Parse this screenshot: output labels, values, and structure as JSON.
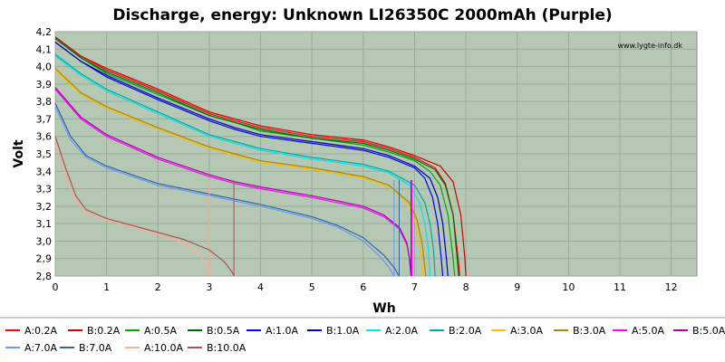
{
  "chart_data": {
    "type": "line",
    "title": "Discharge, energy: Unknown LI26350C 2000mAh (Purple)",
    "xlabel": "Wh",
    "ylabel": "Volt",
    "watermark": "www.lygte-info.dk",
    "xlim": [
      0,
      12.5
    ],
    "ylim": [
      2.8,
      4.2
    ],
    "x_ticks": [
      "0",
      "1",
      "2",
      "3",
      "4",
      "5",
      "6",
      "7",
      "8",
      "9",
      "10",
      "11",
      "12"
    ],
    "y_ticks": [
      "2,8",
      "2,9",
      "3,0",
      "3,1",
      "3,2",
      "3,3",
      "3,4",
      "3,5",
      "3,6",
      "3,7",
      "3,8",
      "3,9",
      "4,0",
      "4,1",
      "4,2"
    ],
    "grid": true,
    "legend_position": "bottom",
    "series": [
      {
        "name": "A:0.2A",
        "color": "#ff0000",
        "points": [
          [
            0,
            4.17
          ],
          [
            0.5,
            4.06
          ],
          [
            1,
            3.98
          ],
          [
            2,
            3.86
          ],
          [
            3,
            3.73
          ],
          [
            3.5,
            3.69
          ],
          [
            4,
            3.65
          ],
          [
            5,
            3.6
          ],
          [
            6,
            3.57
          ],
          [
            6.5,
            3.53
          ],
          [
            7,
            3.48
          ],
          [
            7.4,
            3.42
          ],
          [
            7.6,
            3.33
          ],
          [
            7.75,
            3.15
          ],
          [
            7.85,
            2.9
          ],
          [
            7.88,
            2.8
          ]
        ]
      },
      {
        "name": "B:0.2A",
        "color": "#cc0000",
        "points": [
          [
            0,
            4.17
          ],
          [
            0.5,
            4.06
          ],
          [
            1,
            3.99
          ],
          [
            2,
            3.87
          ],
          [
            3,
            3.74
          ],
          [
            3.5,
            3.7
          ],
          [
            4,
            3.66
          ],
          [
            5,
            3.61
          ],
          [
            6,
            3.58
          ],
          [
            6.5,
            3.54
          ],
          [
            7,
            3.49
          ],
          [
            7.5,
            3.43
          ],
          [
            7.75,
            3.34
          ],
          [
            7.9,
            3.15
          ],
          [
            7.98,
            2.9
          ],
          [
            8,
            2.8
          ]
        ]
      },
      {
        "name": "A:0.5A",
        "color": "#00aa00",
        "points": [
          [
            0,
            4.16
          ],
          [
            0.5,
            4.05
          ],
          [
            1,
            3.96
          ],
          [
            2,
            3.84
          ],
          [
            3,
            3.72
          ],
          [
            3.5,
            3.68
          ],
          [
            4,
            3.63
          ],
          [
            5,
            3.59
          ],
          [
            6,
            3.55
          ],
          [
            6.5,
            3.51
          ],
          [
            7,
            3.46
          ],
          [
            7.3,
            3.4
          ],
          [
            7.5,
            3.32
          ],
          [
            7.65,
            3.15
          ],
          [
            7.75,
            2.9
          ],
          [
            7.78,
            2.8
          ]
        ]
      },
      {
        "name": "B:0.5A",
        "color": "#006600",
        "points": [
          [
            0,
            4.16
          ],
          [
            0.5,
            4.05
          ],
          [
            1,
            3.97
          ],
          [
            2,
            3.85
          ],
          [
            3,
            3.72
          ],
          [
            3.5,
            3.68
          ],
          [
            4,
            3.64
          ],
          [
            5,
            3.59
          ],
          [
            6,
            3.56
          ],
          [
            6.5,
            3.52
          ],
          [
            7,
            3.47
          ],
          [
            7.4,
            3.41
          ],
          [
            7.6,
            3.32
          ],
          [
            7.75,
            3.15
          ],
          [
            7.83,
            2.9
          ],
          [
            7.86,
            2.8
          ]
        ]
      },
      {
        "name": "A:1.0A",
        "color": "#0000ff",
        "points": [
          [
            0,
            4.14
          ],
          [
            0.5,
            4.03
          ],
          [
            1,
            3.94
          ],
          [
            2,
            3.81
          ],
          [
            3,
            3.69
          ],
          [
            3.5,
            3.64
          ],
          [
            4,
            3.6
          ],
          [
            5,
            3.56
          ],
          [
            6,
            3.52
          ],
          [
            6.5,
            3.48
          ],
          [
            7,
            3.42
          ],
          [
            7.2,
            3.36
          ],
          [
            7.35,
            3.25
          ],
          [
            7.45,
            3.1
          ],
          [
            7.52,
            2.9
          ],
          [
            7.55,
            2.8
          ]
        ]
      },
      {
        "name": "B:1.0A",
        "color": "#0000aa",
        "points": [
          [
            0,
            4.14
          ],
          [
            0.5,
            4.03
          ],
          [
            1,
            3.95
          ],
          [
            2,
            3.82
          ],
          [
            3,
            3.7
          ],
          [
            3.5,
            3.65
          ],
          [
            4,
            3.61
          ],
          [
            5,
            3.57
          ],
          [
            6,
            3.53
          ],
          [
            6.5,
            3.49
          ],
          [
            7,
            3.43
          ],
          [
            7.3,
            3.36
          ],
          [
            7.45,
            3.25
          ],
          [
            7.55,
            3.1
          ],
          [
            7.62,
            2.9
          ],
          [
            7.65,
            2.8
          ]
        ]
      },
      {
        "name": "A:2.0A",
        "color": "#00e5e5",
        "points": [
          [
            0,
            4.06
          ],
          [
            0.5,
            3.95
          ],
          [
            1,
            3.86
          ],
          [
            2,
            3.73
          ],
          [
            3,
            3.6
          ],
          [
            3.5,
            3.56
          ],
          [
            4,
            3.52
          ],
          [
            5,
            3.47
          ],
          [
            6,
            3.43
          ],
          [
            6.5,
            3.39
          ],
          [
            6.9,
            3.32
          ],
          [
            7.1,
            3.22
          ],
          [
            7.2,
            3.1
          ],
          [
            7.27,
            2.95
          ],
          [
            7.3,
            2.8
          ]
        ]
      },
      {
        "name": "B:2.0A",
        "color": "#00aaaa",
        "points": [
          [
            0,
            4.07
          ],
          [
            0.5,
            3.96
          ],
          [
            1,
            3.87
          ],
          [
            2,
            3.74
          ],
          [
            3,
            3.61
          ],
          [
            3.5,
            3.57
          ],
          [
            4,
            3.53
          ],
          [
            5,
            3.48
          ],
          [
            6,
            3.44
          ],
          [
            6.5,
            3.4
          ],
          [
            7,
            3.32
          ],
          [
            7.2,
            3.22
          ],
          [
            7.3,
            3.1
          ],
          [
            7.37,
            2.95
          ],
          [
            7.4,
            2.8
          ]
        ]
      },
      {
        "name": "A:3.0A",
        "color": "#ffbb00",
        "points": [
          [
            0,
            3.98
          ],
          [
            0.5,
            3.84
          ],
          [
            1,
            3.76
          ],
          [
            2,
            3.64
          ],
          [
            3,
            3.53
          ],
          [
            3.5,
            3.49
          ],
          [
            4,
            3.45
          ],
          [
            5,
            3.41
          ],
          [
            6,
            3.36
          ],
          [
            6.5,
            3.31
          ],
          [
            6.85,
            3.22
          ],
          [
            7,
            3.12
          ],
          [
            7.1,
            2.98
          ],
          [
            7.15,
            2.85
          ],
          [
            7.17,
            2.8
          ]
        ]
      },
      {
        "name": "B:3.0A",
        "color": "#aa8800",
        "points": [
          [
            0,
            3.99
          ],
          [
            0.5,
            3.85
          ],
          [
            1,
            3.77
          ],
          [
            2,
            3.65
          ],
          [
            3,
            3.54
          ],
          [
            3.5,
            3.5
          ],
          [
            4,
            3.46
          ],
          [
            5,
            3.42
          ],
          [
            6,
            3.37
          ],
          [
            6.5,
            3.32
          ],
          [
            6.9,
            3.22
          ],
          [
            7.05,
            3.12
          ],
          [
            7.15,
            2.98
          ],
          [
            7.2,
            2.85
          ],
          [
            7.22,
            2.8
          ]
        ]
      },
      {
        "name": "A:5.0A",
        "color": "#ff00ff",
        "points": [
          [
            0,
            3.87
          ],
          [
            0.5,
            3.7
          ],
          [
            1,
            3.6
          ],
          [
            2,
            3.47
          ],
          [
            3,
            3.37
          ],
          [
            3.5,
            3.33
          ],
          [
            4,
            3.3
          ],
          [
            5,
            3.25
          ],
          [
            6,
            3.19
          ],
          [
            6.4,
            3.14
          ],
          [
            6.7,
            3.07
          ],
          [
            6.85,
            2.98
          ],
          [
            6.92,
            2.88
          ],
          [
            6.95,
            2.8
          ]
        ]
      },
      {
        "name": "B:5.0A",
        "color": "#aa00aa",
        "points": [
          [
            0,
            3.88
          ],
          [
            0.5,
            3.71
          ],
          [
            1,
            3.61
          ],
          [
            2,
            3.48
          ],
          [
            3,
            3.38
          ],
          [
            3.5,
            3.34
          ],
          [
            4,
            3.31
          ],
          [
            5,
            3.26
          ],
          [
            6,
            3.2
          ],
          [
            6.4,
            3.15
          ],
          [
            6.7,
            3.08
          ],
          [
            6.85,
            2.99
          ],
          [
            6.9,
            2.9
          ],
          [
            6.93,
            2.8
          ]
        ]
      },
      {
        "name": "A:7.0A",
        "color": "#6699ff",
        "points": [
          [
            0,
            3.77
          ],
          [
            0.3,
            3.58
          ],
          [
            0.6,
            3.48
          ],
          [
            1,
            3.42
          ],
          [
            2,
            3.32
          ],
          [
            3,
            3.26
          ],
          [
            4,
            3.2
          ],
          [
            5,
            3.13
          ],
          [
            5.5,
            3.08
          ],
          [
            6,
            3.0
          ],
          [
            6.3,
            2.92
          ],
          [
            6.5,
            2.85
          ],
          [
            6.6,
            2.8
          ]
        ]
      },
      {
        "name": "B:7.0A",
        "color": "#336699",
        "points": [
          [
            0,
            3.79
          ],
          [
            0.3,
            3.6
          ],
          [
            0.6,
            3.49
          ],
          [
            1,
            3.43
          ],
          [
            2,
            3.33
          ],
          [
            3,
            3.27
          ],
          [
            4,
            3.21
          ],
          [
            5,
            3.14
          ],
          [
            5.5,
            3.09
          ],
          [
            6,
            3.02
          ],
          [
            6.4,
            2.92
          ],
          [
            6.6,
            2.85
          ],
          [
            6.7,
            2.8
          ]
        ]
      },
      {
        "name": "A:10.0A",
        "color": "#ffaa99",
        "points": [
          [
            0,
            3.55
          ],
          [
            0.2,
            3.38
          ],
          [
            0.4,
            3.23
          ],
          [
            0.6,
            3.16
          ],
          [
            1,
            3.12
          ],
          [
            1.5,
            3.08
          ],
          [
            2,
            3.04
          ],
          [
            2.5,
            2.99
          ],
          [
            2.8,
            2.93
          ],
          [
            2.95,
            2.86
          ],
          [
            3,
            2.8
          ]
        ]
      },
      {
        "name": "B:10.0A",
        "color": "#aa5555",
        "points": [
          [
            0,
            3.6
          ],
          [
            0.2,
            3.42
          ],
          [
            0.4,
            3.26
          ],
          [
            0.6,
            3.18
          ],
          [
            1,
            3.13
          ],
          [
            1.5,
            3.09
          ],
          [
            2,
            3.05
          ],
          [
            2.5,
            3.01
          ],
          [
            3,
            2.95
          ],
          [
            3.3,
            2.88
          ],
          [
            3.45,
            2.82
          ],
          [
            3.48,
            2.8
          ]
        ]
      }
    ]
  }
}
